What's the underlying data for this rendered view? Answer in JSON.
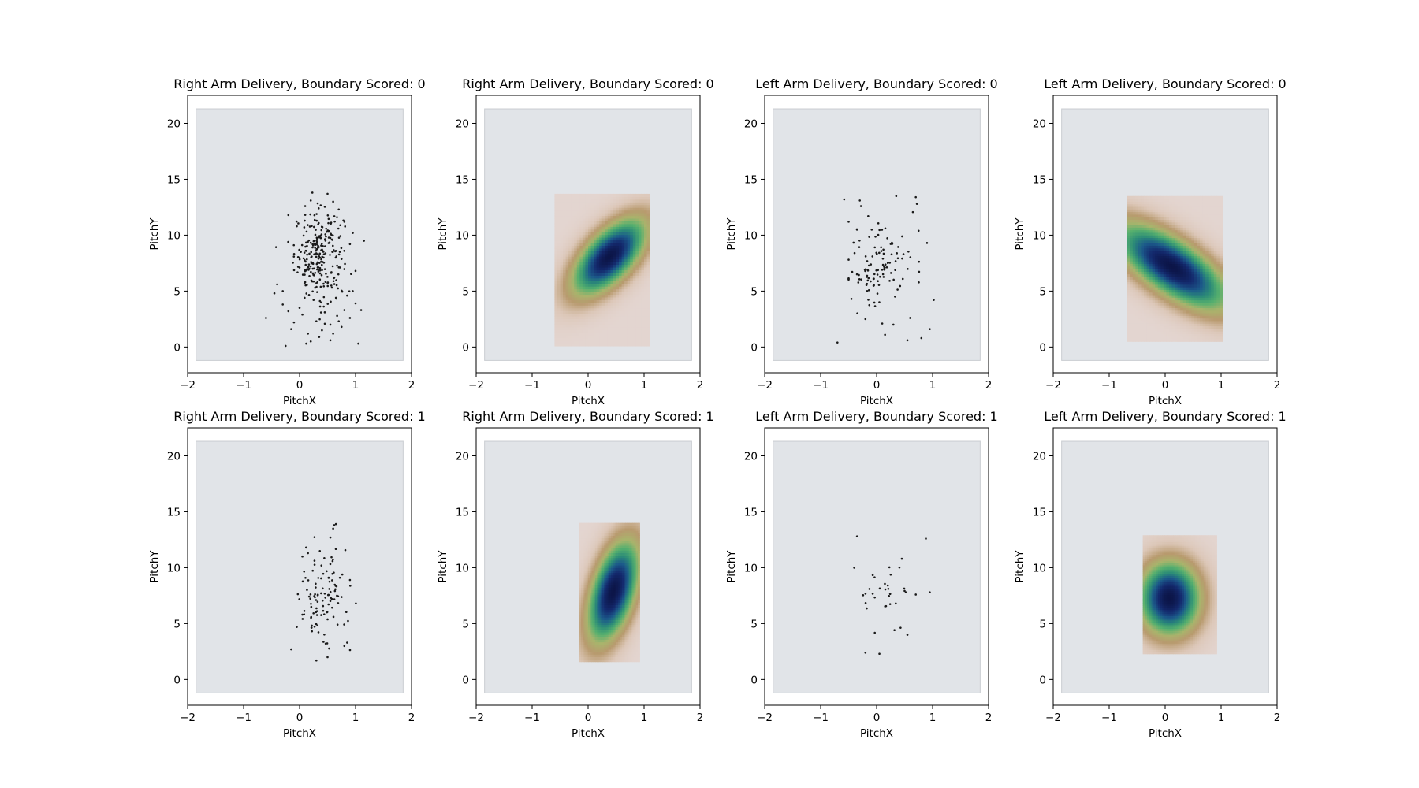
{
  "chart_data": [
    {
      "type": "scatter",
      "title": "Right Arm Delivery, Boundary Scored: 0",
      "xlabel": "PitchX",
      "ylabel": "PitchY",
      "xlim": [
        -2,
        2
      ],
      "ylim": [
        -2.3,
        22.5
      ],
      "xticks": [
        "−2",
        "−1",
        "0",
        "1",
        "2"
      ],
      "yticks": [
        "0",
        "5",
        "10",
        "15",
        "20"
      ],
      "background": "#e1e4e8",
      "pitch_area": {
        "x": [
          -1.85,
          1.85
        ],
        "y": [
          -1.2,
          21.3
        ]
      },
      "point_color": "#1a1a1a",
      "cluster": {
        "center": [
          0.35,
          8.2
        ],
        "spread": [
          0.22,
          2.0
        ],
        "count": 260
      },
      "scatter_points": [
        [
          -0.6,
          2.6
        ],
        [
          -0.25,
          0.1
        ],
        [
          -0.2,
          11.8
        ],
        [
          0.12,
          0.3
        ],
        [
          0.2,
          0.5
        ],
        [
          0.15,
          1.2
        ],
        [
          -0.1,
          2.2
        ],
        [
          -0.3,
          3.8
        ],
        [
          0.05,
          2.9
        ],
        [
          0.4,
          1.5
        ],
        [
          0.6,
          1.2
        ],
        [
          0.7,
          2.3
        ],
        [
          0.8,
          3.3
        ],
        [
          0.9,
          2.6
        ],
        [
          1.0,
          3.9
        ],
        [
          1.1,
          3.3
        ],
        [
          1.05,
          0.3
        ],
        [
          0.95,
          5.0
        ],
        [
          1.0,
          6.8
        ],
        [
          0.9,
          9.2
        ],
        [
          0.95,
          10.2
        ],
        [
          1.15,
          9.5
        ],
        [
          0.8,
          11.2
        ],
        [
          0.7,
          12.3
        ],
        [
          0.6,
          13.0
        ],
        [
          0.5,
          13.7
        ],
        [
          0.2,
          13.1
        ],
        [
          0.1,
          12.6
        ],
        [
          -0.05,
          10.8
        ],
        [
          -0.4,
          5.6
        ],
        [
          -0.45,
          4.8
        ],
        [
          -0.3,
          5.0
        ],
        [
          0.3,
          2.3
        ],
        [
          0.55,
          0.6
        ],
        [
          0.75,
          1.8
        ],
        [
          0.35,
          0.9
        ],
        [
          -0.15,
          1.6
        ],
        [
          0.0,
          3.5
        ],
        [
          0.45,
          3.1
        ],
        [
          0.65,
          4.4
        ],
        [
          0.25,
          4.2
        ],
        [
          -0.2,
          3.2
        ],
        [
          0.85,
          4.6
        ],
        [
          0.1,
          5.8
        ],
        [
          0.55,
          2.0
        ]
      ]
    },
    {
      "type": "heatmap",
      "title": "Right Arm Delivery, Boundary Scored: 0",
      "xlabel": "PitchX",
      "ylabel": "PitchY",
      "xlim": [
        -2,
        2
      ],
      "ylim": [
        -2.3,
        22.5
      ],
      "xticks": [
        "−2",
        "−1",
        "0",
        "1",
        "2"
      ],
      "yticks": [
        "0",
        "5",
        "10",
        "15",
        "20"
      ],
      "background": "#e1e4e8",
      "pitch_area": {
        "x": [
          -1.85,
          1.85
        ],
        "y": [
          -1.2,
          21.3
        ]
      },
      "extent": {
        "x": [
          -0.6,
          1.1
        ],
        "y": [
          0.1,
          13.7
        ]
      },
      "peak": [
        0.38,
        8.1
      ],
      "spread": {
        "major": 2.4,
        "minor": 0.36,
        "tilt": 0.12
      },
      "colormap": [
        "#e7dcdc",
        "#dcc7b8",
        "#b89a6e",
        "#a9b46c",
        "#57b06e",
        "#2d8d77",
        "#1c5a8a",
        "#142a6e",
        "#0c1548"
      ]
    },
    {
      "type": "scatter",
      "title": "Left Arm Delivery, Boundary Scored: 0",
      "xlabel": "PitchX",
      "ylabel": "PitchY",
      "xlim": [
        -2,
        2
      ],
      "ylim": [
        -2.3,
        22.5
      ],
      "xticks": [
        "−2",
        "−1",
        "0",
        "1",
        "2"
      ],
      "yticks": [
        "0",
        "5",
        "10",
        "15",
        "20"
      ],
      "background": "#e1e4e8",
      "pitch_area": {
        "x": [
          -1.85,
          1.85
        ],
        "y": [
          -1.2,
          21.3
        ]
      },
      "point_color": "#1a1a1a",
      "cluster": {
        "center": [
          0.05,
          7.2
        ],
        "spread": [
          0.32,
          1.9
        ],
        "count": 110
      },
      "scatter_points": [
        [
          -0.7,
          0.4
        ],
        [
          -0.58,
          13.2
        ],
        [
          -0.3,
          13.1
        ],
        [
          -0.28,
          12.6
        ],
        [
          0.35,
          13.5
        ],
        [
          0.7,
          13.4
        ],
        [
          0.72,
          12.8
        ],
        [
          0.9,
          9.3
        ],
        [
          1.02,
          4.2
        ],
        [
          0.95,
          1.6
        ],
        [
          0.8,
          0.8
        ],
        [
          0.55,
          0.6
        ],
        [
          0.15,
          1.1
        ],
        [
          0.1,
          2.1
        ],
        [
          -0.2,
          2.5
        ],
        [
          -0.45,
          4.3
        ],
        [
          -0.5,
          11.2
        ],
        [
          -0.35,
          10.5
        ],
        [
          0.6,
          2.6
        ],
        [
          0.3,
          2.0
        ],
        [
          0.75,
          10.4
        ],
        [
          -0.15,
          11.7
        ]
      ]
    },
    {
      "type": "heatmap",
      "title": "Left Arm Delivery, Boundary Scored: 0",
      "xlabel": "PitchX",
      "ylabel": "PitchY",
      "xlim": [
        -2,
        2
      ],
      "ylim": [
        -2.3,
        22.5
      ],
      "xticks": [
        "−2",
        "−1",
        "0",
        "1",
        "2"
      ],
      "yticks": [
        "0",
        "5",
        "10",
        "15",
        "20"
      ],
      "background": "#e1e4e8",
      "pitch_area": {
        "x": [
          -1.85,
          1.85
        ],
        "y": [
          -1.2,
          21.3
        ]
      },
      "extent": {
        "x": [
          -0.68,
          1.02
        ],
        "y": [
          0.5,
          13.5
        ]
      },
      "peak": [
        0.12,
        7.2
      ],
      "spread": {
        "major": 2.7,
        "minor": 0.5,
        "tilt": -0.18
      },
      "colormap": [
        "#e7dcdc",
        "#dcc7b8",
        "#b89a6e",
        "#a9b46c",
        "#57b06e",
        "#2d8d77",
        "#1c5a8a",
        "#142a6e",
        "#0c1548"
      ]
    },
    {
      "type": "scatter",
      "title": "Right Arm Delivery, Boundary Scored: 1",
      "xlabel": "PitchX",
      "ylabel": "PitchY",
      "xlim": [
        -2,
        2
      ],
      "ylim": [
        -2.3,
        22.5
      ],
      "xticks": [
        "−2",
        "−1",
        "0",
        "1",
        "2"
      ],
      "yticks": [
        "0",
        "5",
        "10",
        "15",
        "20"
      ],
      "background": "#e1e4e8",
      "pitch_area": {
        "x": [
          -1.85,
          1.85
        ],
        "y": [
          -1.2,
          21.3
        ]
      },
      "point_color": "#1a1a1a",
      "cluster": {
        "center": [
          0.42,
          7.8
        ],
        "spread": [
          0.2,
          2.4
        ],
        "count": 110
      },
      "scatter_points": [
        [
          -0.15,
          2.7
        ],
        [
          0.3,
          1.7
        ],
        [
          0.5,
          2.0
        ],
        [
          0.8,
          3.0
        ],
        [
          0.85,
          3.3
        ],
        [
          0.65,
          13.9
        ],
        [
          0.6,
          13.5
        ],
        [
          0.55,
          12.7
        ],
        [
          0.15,
          11.3
        ],
        [
          -0.05,
          4.7
        ],
        [
          0.05,
          5.8
        ],
        [
          0.9,
          8.9
        ],
        [
          0.05,
          11.0
        ]
      ]
    },
    {
      "type": "heatmap",
      "title": "Right Arm Delivery, Boundary Scored: 1",
      "xlabel": "PitchX",
      "ylabel": "PitchY",
      "xlim": [
        -2,
        2
      ],
      "ylim": [
        -2.3,
        22.5
      ],
      "xticks": [
        "−2",
        "−1",
        "0",
        "1",
        "2"
      ],
      "yticks": [
        "0",
        "5",
        "10",
        "15",
        "20"
      ],
      "background": "#e1e4e8",
      "pitch_area": {
        "x": [
          -1.85,
          1.85
        ],
        "y": [
          -1.2,
          21.3
        ]
      },
      "extent": {
        "x": [
          -0.16,
          0.92
        ],
        "y": [
          1.6,
          14.0
        ]
      },
      "peak": [
        0.45,
        7.9
      ],
      "spread": {
        "major": 3.2,
        "minor": 0.28,
        "tilt": 0.05
      },
      "colormap": [
        "#e7dcdc",
        "#dcc7b8",
        "#b89a6e",
        "#a9b46c",
        "#57b06e",
        "#2d8d77",
        "#1c5a8a",
        "#142a6e",
        "#0c1548"
      ]
    },
    {
      "type": "scatter",
      "title": "Left Arm Delivery, Boundary Scored: 1",
      "xlabel": "PitchX",
      "ylabel": "PitchY",
      "xlim": [
        -2,
        2
      ],
      "ylim": [
        -2.3,
        22.5
      ],
      "xticks": [
        "−2",
        "−1",
        "0",
        "1",
        "2"
      ],
      "yticks": [
        "0",
        "5",
        "10",
        "15",
        "20"
      ],
      "background": "#e1e4e8",
      "pitch_area": {
        "x": [
          -1.85,
          1.85
        ],
        "y": [
          -1.2,
          21.3
        ]
      },
      "point_color": "#1a1a1a",
      "cluster": {
        "center": [
          0.12,
          7.5
        ],
        "spread": [
          0.22,
          1.6
        ],
        "count": 30
      },
      "scatter_points": [
        [
          -0.35,
          12.8
        ],
        [
          0.88,
          12.6
        ],
        [
          -0.4,
          10.0
        ],
        [
          -0.2,
          2.4
        ],
        [
          0.05,
          2.3
        ],
        [
          0.95,
          7.8
        ],
        [
          0.55,
          4.0
        ],
        [
          0.7,
          7.6
        ],
        [
          0.45,
          10.8
        ]
      ]
    },
    {
      "type": "heatmap",
      "title": "Left Arm Delivery, Boundary Scored: 1",
      "xlabel": "PitchX",
      "ylabel": "PitchY",
      "xlim": [
        -2,
        2
      ],
      "ylim": [
        -2.3,
        22.5
      ],
      "xticks": [
        "−2",
        "−1",
        "0",
        "1",
        "2"
      ],
      "yticks": [
        "0",
        "5",
        "10",
        "15",
        "20"
      ],
      "background": "#e1e4e8",
      "pitch_area": {
        "x": [
          -1.85,
          1.85
        ],
        "y": [
          -1.2,
          21.3
        ]
      },
      "extent": {
        "x": [
          -0.4,
          0.92
        ],
        "y": [
          2.3,
          12.9
        ]
      },
      "peak": [
        0.08,
        7.3
      ],
      "spread": {
        "major": 2.3,
        "minor": 0.38,
        "tilt": 0.0
      },
      "colormap": [
        "#e7dcdc",
        "#dcc7b8",
        "#b89a6e",
        "#a9b46c",
        "#57b06e",
        "#2d8d77",
        "#1c5a8a",
        "#142a6e",
        "#0c1548"
      ]
    }
  ]
}
